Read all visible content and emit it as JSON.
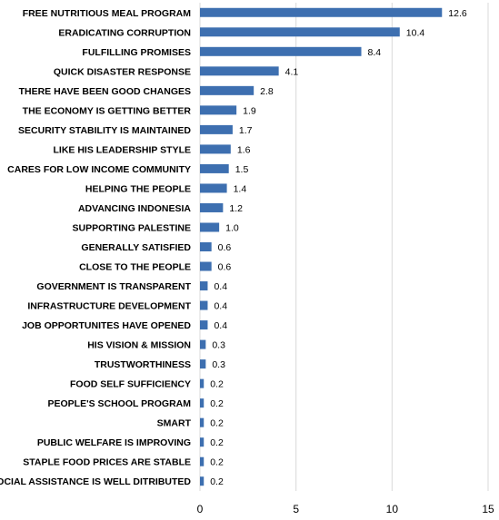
{
  "chart_data": {
    "type": "bar",
    "orientation": "horizontal",
    "categories": [
      "FREE NUTRITIOUS MEAL PROGRAM",
      "ERADICATING CORRUPTION",
      "FULFILLING PROMISES",
      "QUICK DISASTER RESPONSE",
      "THERE HAVE BEEN GOOD CHANGES",
      "THE ECONOMY IS GETTING BETTER",
      "SECURITY STABILITY IS MAINTAINED",
      "LIKE HIS LEADERSHIP STYLE",
      "CARES FOR LOW INCOME COMMUNITY",
      "HELPING THE PEOPLE",
      "ADVANCING INDONESIA",
      "SUPPORTING PALESTINE",
      "GENERALLY SATISFIED",
      "CLOSE TO THE PEOPLE",
      "GOVERNMENT IS TRANSPARENT",
      "INFRASTRUCTURE DEVELOPMENT",
      "JOB OPPORTUNITES HAVE OPENED",
      "HIS VISION & MISSION",
      "TRUSTWORTHINESS",
      "FOOD SELF SUFFICIENCY",
      "PEOPLE'S SCHOOL PROGRAM",
      "SMART",
      "PUBLIC WELFARE IS IMPROVING",
      "STAPLE FOOD PRICES ARE STABLE",
      "SOCIAL ASSISTANCE IS WELL DITRIBUTED"
    ],
    "values": [
      12.6,
      10.4,
      8.4,
      4.1,
      2.8,
      1.9,
      1.7,
      1.6,
      1.5,
      1.4,
      1.2,
      1.0,
      0.6,
      0.6,
      0.4,
      0.4,
      0.4,
      0.3,
      0.3,
      0.2,
      0.2,
      0.2,
      0.2,
      0.2,
      0.2
    ],
    "value_labels": [
      "12.6",
      "10.4",
      "8.4",
      "4.1",
      "2.8",
      "1.9",
      "1.7",
      "1.6",
      "1.5",
      "1.4",
      "1.2",
      "1.0",
      "0.6",
      "0.6",
      "0.4",
      "0.4",
      "0.4",
      "0.3",
      "0.3",
      "0.2",
      "0.2",
      "0.2",
      "0.2",
      "0.2",
      "0.2"
    ],
    "xticks": [
      "0",
      "5",
      "10",
      "15"
    ],
    "xlim": [
      0,
      15
    ],
    "title": "",
    "xlabel": "",
    "ylabel": "",
    "grid": true,
    "legend": "none",
    "bar_color": "#3D6FB0",
    "grid_color": "#D9D9D9"
  }
}
